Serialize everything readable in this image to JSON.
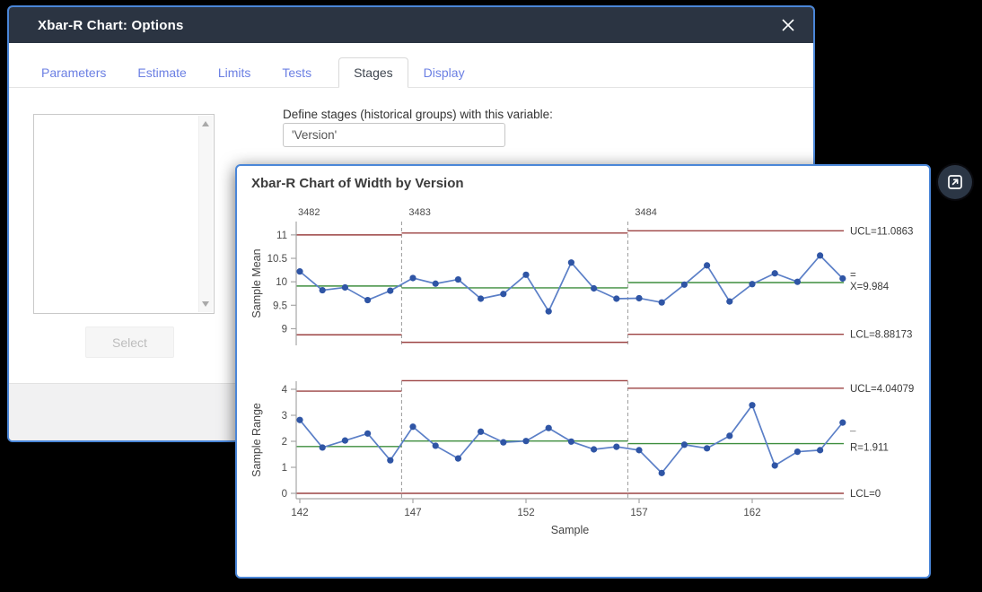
{
  "window": {
    "title": "Xbar-R Chart: Options"
  },
  "tabs": [
    {
      "label": "Parameters",
      "active": false
    },
    {
      "label": "Estimate",
      "active": false
    },
    {
      "label": "Limits",
      "active": false
    },
    {
      "label": "Tests",
      "active": false
    },
    {
      "label": "Stages",
      "active": true
    },
    {
      "label": "Display",
      "active": false
    }
  ],
  "stages_tab": {
    "variable_label": "Define stages (historical groups) with this variable:",
    "variable_value": "'Version'",
    "select_button": "Select",
    "listbox_items": []
  },
  "chart_window": {
    "title": "Xbar-R Chart of Width by Version"
  },
  "colors": {
    "window_border": "#4a86d8",
    "titlebar": "#2b3442",
    "tab_link": "#6b7fe3",
    "limit_line": "#9c4343",
    "center_line": "#3e8e3e",
    "series_line": "#5b7fc7",
    "marker": "#2f55a5",
    "axis": "#a6a6a6",
    "boundary": "#999999",
    "tick_text": "#4a4a4a"
  },
  "chart_data": [
    {
      "type": "line",
      "title": "Xbar-R Chart of Width by Version",
      "ylabel": "Sample Mean",
      "xlabel": "Sample",
      "x_start": 142,
      "x": [
        142,
        143,
        144,
        145,
        146,
        147,
        148,
        149,
        150,
        151,
        152,
        153,
        154,
        155,
        156,
        157,
        158,
        159,
        160,
        161,
        162,
        163,
        164,
        165,
        166
      ],
      "values": [
        10.22,
        9.82,
        9.88,
        9.61,
        9.81,
        10.08,
        9.96,
        10.05,
        9.64,
        9.74,
        10.15,
        9.37,
        10.41,
        9.86,
        9.64,
        9.65,
        9.56,
        9.94,
        10.35,
        9.58,
        9.95,
        10.18,
        10.0,
        10.56,
        10.07
      ],
      "y_ticks": [
        9,
        9.5,
        10,
        10.5,
        11
      ],
      "ylim": [
        8.55,
        11.35
      ],
      "stages": [
        {
          "label": "3482",
          "n": 5,
          "cl": 9.91,
          "ucl": 11.0,
          "lcl": 8.87
        },
        {
          "label": "3483",
          "n": 10,
          "cl": 9.87,
          "ucl": 11.04,
          "lcl": 8.71
        },
        {
          "label": "3484",
          "n": 10,
          "cl": 9.984,
          "ucl": 11.0863,
          "lcl": 8.88173
        }
      ],
      "right_labels": {
        "ucl": "UCL=11.0863",
        "center": "X=9.984",
        "center_overline": "=",
        "lcl": "LCL=8.88173"
      },
      "legend_position": "right",
      "grid": false
    },
    {
      "type": "line",
      "title": "",
      "ylabel": "Sample Range",
      "xlabel": "Sample",
      "x_start": 142,
      "x": [
        142,
        143,
        144,
        145,
        146,
        147,
        148,
        149,
        150,
        151,
        152,
        153,
        154,
        155,
        156,
        157,
        158,
        159,
        160,
        161,
        162,
        163,
        164,
        165,
        166
      ],
      "values": [
        2.82,
        1.76,
        2.03,
        2.3,
        1.27,
        2.56,
        1.83,
        1.34,
        2.37,
        1.96,
        2.01,
        2.51,
        1.99,
        1.69,
        1.79,
        1.66,
        0.78,
        1.87,
        1.73,
        2.21,
        3.39,
        1.07,
        1.6,
        1.66,
        2.72
      ],
      "y_ticks": [
        0,
        1,
        2,
        3,
        4
      ],
      "ylim": [
        -0.3,
        4.35
      ],
      "x_tick_labels": [
        142,
        147,
        152,
        157,
        162
      ],
      "stages": [
        {
          "label": "3482",
          "n": 5,
          "cl": 1.8,
          "ucl": 3.93,
          "lcl": 0
        },
        {
          "label": "3483",
          "n": 10,
          "cl": 2.01,
          "ucl": 4.33,
          "lcl": 0
        },
        {
          "label": "3484",
          "n": 10,
          "cl": 1.911,
          "ucl": 4.04079,
          "lcl": 0
        }
      ],
      "right_labels": {
        "ucl": "UCL=4.04079",
        "center": "R=1.911",
        "center_overline": "¯",
        "lcl": "LCL=0"
      },
      "legend_position": "right",
      "grid": false
    }
  ]
}
